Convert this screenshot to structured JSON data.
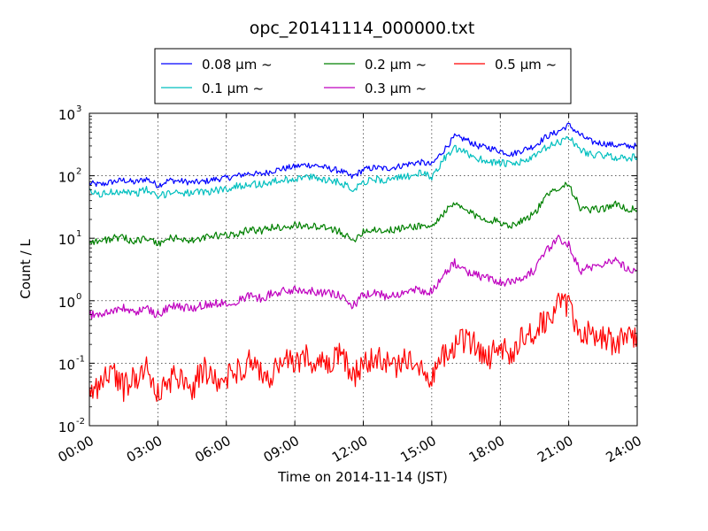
{
  "chart_data": {
    "type": "line",
    "title": "opc_20141114_000000.txt",
    "xlabel": "Time on 2014-11-14 (JST)",
    "ylabel": "Count / L",
    "x_unit": "hours",
    "xlim": [
      0,
      24
    ],
    "ylim": [
      0.01,
      1000
    ],
    "y_scale": "log",
    "grid": true,
    "legend_position": "top",
    "x_ticks": [
      {
        "value": 0,
        "label": "00:00"
      },
      {
        "value": 3,
        "label": "03:00"
      },
      {
        "value": 6,
        "label": "06:00"
      },
      {
        "value": 9,
        "label": "09:00"
      },
      {
        "value": 12,
        "label": "12:00"
      },
      {
        "value": 15,
        "label": "15:00"
      },
      {
        "value": 18,
        "label": "18:00"
      },
      {
        "value": 21,
        "label": "21:00"
      },
      {
        "value": 24,
        "label": "24:00"
      }
    ],
    "y_ticks": [
      {
        "value": 0.01,
        "base": "10",
        "exp": "-2"
      },
      {
        "value": 0.1,
        "base": "10",
        "exp": "-1"
      },
      {
        "value": 1,
        "base": "10",
        "exp": "0"
      },
      {
        "value": 10,
        "base": "10",
        "exp": "1"
      },
      {
        "value": 100,
        "base": "10",
        "exp": "2"
      },
      {
        "value": 1000,
        "base": "10",
        "exp": "3"
      }
    ],
    "x": [
      0,
      0.5,
      1,
      1.5,
      2,
      2.5,
      3,
      3.5,
      4,
      4.5,
      5,
      5.5,
      6,
      6.5,
      7,
      7.5,
      8,
      8.5,
      9,
      9.5,
      10,
      10.5,
      11,
      11.5,
      12,
      12.5,
      13,
      13.5,
      14,
      14.5,
      15,
      15.5,
      16,
      16.5,
      17,
      17.5,
      18,
      18.5,
      19,
      19.5,
      20,
      20.5,
      21,
      21.5,
      22,
      22.5,
      23,
      23.5,
      24
    ],
    "series": [
      {
        "name": "0.08 μm ~",
        "color": "#0000ff",
        "values": [
          75,
          72,
          80,
          85,
          78,
          90,
          70,
          85,
          82,
          78,
          80,
          88,
          92,
          100,
          110,
          105,
          120,
          130,
          140,
          150,
          145,
          130,
          120,
          95,
          125,
          135,
          130,
          140,
          155,
          165,
          150,
          250,
          420,
          380,
          300,
          280,
          250,
          220,
          260,
          300,
          420,
          500,
          650,
          450,
          350,
          330,
          310,
          300,
          300
        ]
      },
      {
        "name": "0.1 μm ~",
        "color": "#00bfbf",
        "values": [
          55,
          50,
          55,
          58,
          52,
          60,
          45,
          55,
          55,
          52,
          55,
          58,
          62,
          68,
          75,
          72,
          80,
          85,
          90,
          95,
          92,
          85,
          80,
          60,
          80,
          88,
          85,
          90,
          100,
          110,
          95,
          180,
          270,
          230,
          190,
          170,
          160,
          150,
          170,
          200,
          280,
          330,
          420,
          260,
          220,
          210,
          200,
          190,
          200
        ]
      },
      {
        "name": "0.2 μm ~",
        "color": "#008000",
        "values": [
          9,
          9,
          10,
          10,
          9,
          10,
          8,
          10,
          10,
          9,
          10,
          11,
          11,
          12,
          14,
          13,
          15,
          15,
          16,
          16,
          15,
          14,
          13,
          9,
          13,
          14,
          13,
          14,
          15,
          16,
          15,
          25,
          35,
          28,
          22,
          20,
          18,
          16,
          20,
          25,
          45,
          65,
          75,
          30,
          28,
          30,
          35,
          30,
          28
        ]
      },
      {
        "name": "0.3 μm ~",
        "color": "#bf00bf",
        "values": [
          0.6,
          0.6,
          0.7,
          0.75,
          0.65,
          0.75,
          0.6,
          0.8,
          0.8,
          0.75,
          0.85,
          0.9,
          0.95,
          1.0,
          1.2,
          1.1,
          1.3,
          1.4,
          1.5,
          1.5,
          1.4,
          1.3,
          1.2,
          0.8,
          1.2,
          1.3,
          1.2,
          1.3,
          1.4,
          1.5,
          1.4,
          2.5,
          4.0,
          3.0,
          2.5,
          2.3,
          2.0,
          2.0,
          2.5,
          3.0,
          6.0,
          10,
          8.0,
          3.0,
          3.5,
          4.0,
          4.5,
          3.5,
          3.0
        ]
      },
      {
        "name": "0.5 μm ~",
        "color": "#ff0000",
        "values": [
          0.03,
          0.05,
          0.08,
          0.04,
          0.06,
          0.09,
          0.03,
          0.05,
          0.07,
          0.04,
          0.08,
          0.05,
          0.06,
          0.08,
          0.1,
          0.07,
          0.06,
          0.12,
          0.09,
          0.13,
          0.1,
          0.08,
          0.15,
          0.06,
          0.09,
          0.12,
          0.1,
          0.08,
          0.13,
          0.1,
          0.06,
          0.12,
          0.2,
          0.25,
          0.18,
          0.12,
          0.2,
          0.15,
          0.25,
          0.3,
          0.5,
          0.8,
          0.9,
          0.3,
          0.28,
          0.25,
          0.22,
          0.25,
          0.3
        ]
      }
    ]
  }
}
